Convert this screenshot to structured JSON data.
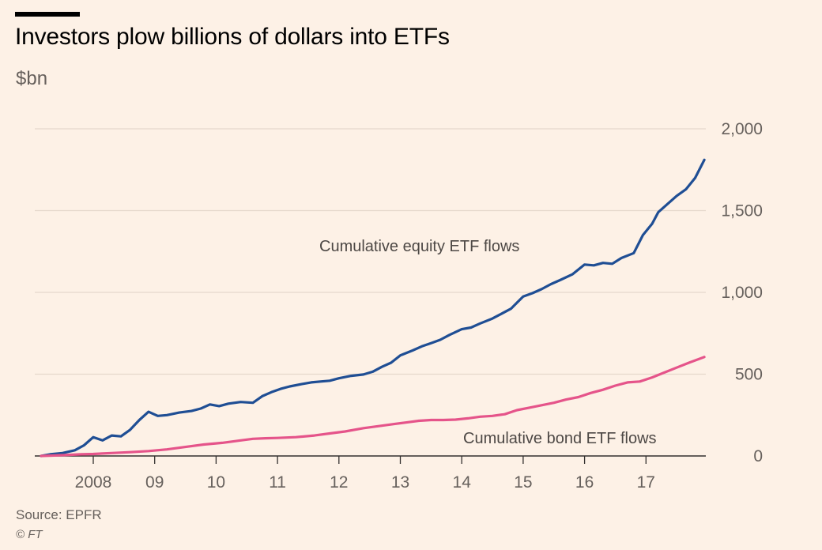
{
  "header": {
    "title": "Investors plow billions of dollars into ETFs",
    "subtitle": "$bn"
  },
  "footer": {
    "source": "Source: EPFR",
    "copyright": "© FT"
  },
  "colors": {
    "equity": "#1f4e94",
    "bond": "#e5548a",
    "grid": "#e5d8cc",
    "axis": "#33302e"
  },
  "chart_data": {
    "type": "line",
    "title": "Investors plow billions of dollars into ETFs",
    "ylabel": "$bn",
    "xlabel": "",
    "ylim": [
      0,
      2000
    ],
    "xlim": [
      2007.15,
      2017.95
    ],
    "y_ticks": [
      {
        "value": 0,
        "label": "0"
      },
      {
        "value": 500,
        "label": "500"
      },
      {
        "value": 1000,
        "label": "1,000"
      },
      {
        "value": 1500,
        "label": "1,500"
      },
      {
        "value": 2000,
        "label": "2,000"
      }
    ],
    "x_ticks": [
      {
        "value": 2008,
        "label": "2008"
      },
      {
        "value": 2009,
        "label": "09"
      },
      {
        "value": 2010,
        "label": "10"
      },
      {
        "value": 2011,
        "label": "11"
      },
      {
        "value": 2012,
        "label": "12"
      },
      {
        "value": 2013,
        "label": "13"
      },
      {
        "value": 2014,
        "label": "14"
      },
      {
        "value": 2015,
        "label": "15"
      },
      {
        "value": 2016,
        "label": "16"
      },
      {
        "value": 2017,
        "label": "17"
      }
    ],
    "annotations": {
      "equity": "Cumulative equity ETF flows",
      "bond": "Cumulative bond ETF flows"
    },
    "series": [
      {
        "name": "Cumulative equity ETF flows",
        "points": [
          [
            2007.15,
            0
          ],
          [
            2007.3,
            10
          ],
          [
            2007.5,
            18
          ],
          [
            2007.7,
            35
          ],
          [
            2007.85,
            65
          ],
          [
            2008.0,
            115
          ],
          [
            2008.15,
            95
          ],
          [
            2008.3,
            125
          ],
          [
            2008.45,
            120
          ],
          [
            2008.6,
            160
          ],
          [
            2008.75,
            220
          ],
          [
            2008.9,
            270
          ],
          [
            2009.05,
            245
          ],
          [
            2009.2,
            250
          ],
          [
            2009.4,
            265
          ],
          [
            2009.6,
            275
          ],
          [
            2009.75,
            290
          ],
          [
            2009.9,
            315
          ],
          [
            2010.05,
            305
          ],
          [
            2010.2,
            320
          ],
          [
            2010.4,
            330
          ],
          [
            2010.6,
            325
          ],
          [
            2010.75,
            365
          ],
          [
            2010.9,
            390
          ],
          [
            2011.05,
            410
          ],
          [
            2011.2,
            425
          ],
          [
            2011.4,
            440
          ],
          [
            2011.55,
            450
          ],
          [
            2011.7,
            455
          ],
          [
            2011.85,
            460
          ],
          [
            2012.0,
            475
          ],
          [
            2012.2,
            490
          ],
          [
            2012.4,
            498
          ],
          [
            2012.55,
            515
          ],
          [
            2012.7,
            545
          ],
          [
            2012.85,
            570
          ],
          [
            2013.0,
            615
          ],
          [
            2013.2,
            645
          ],
          [
            2013.35,
            670
          ],
          [
            2013.5,
            690
          ],
          [
            2013.65,
            710
          ],
          [
            2013.8,
            740
          ],
          [
            2014.0,
            775
          ],
          [
            2014.15,
            785
          ],
          [
            2014.3,
            810
          ],
          [
            2014.5,
            840
          ],
          [
            2014.65,
            870
          ],
          [
            2014.8,
            900
          ],
          [
            2015.0,
            975
          ],
          [
            2015.15,
            995
          ],
          [
            2015.3,
            1020
          ],
          [
            2015.45,
            1050
          ],
          [
            2015.6,
            1075
          ],
          [
            2015.8,
            1110
          ],
          [
            2016.0,
            1170
          ],
          [
            2016.15,
            1165
          ],
          [
            2016.3,
            1180
          ],
          [
            2016.45,
            1175
          ],
          [
            2016.6,
            1210
          ],
          [
            2016.8,
            1240
          ],
          [
            2016.95,
            1350
          ],
          [
            2017.1,
            1420
          ],
          [
            2017.2,
            1490
          ],
          [
            2017.35,
            1540
          ],
          [
            2017.5,
            1590
          ],
          [
            2017.65,
            1630
          ],
          [
            2017.8,
            1700
          ],
          [
            2017.95,
            1810
          ]
        ]
      },
      {
        "name": "Cumulative bond ETF flows",
        "points": [
          [
            2007.15,
            0
          ],
          [
            2007.5,
            5
          ],
          [
            2007.8,
            10
          ],
          [
            2008.0,
            12
          ],
          [
            2008.3,
            18
          ],
          [
            2008.6,
            23
          ],
          [
            2008.9,
            30
          ],
          [
            2009.2,
            40
          ],
          [
            2009.5,
            55
          ],
          [
            2009.8,
            70
          ],
          [
            2010.1,
            80
          ],
          [
            2010.4,
            95
          ],
          [
            2010.6,
            105
          ],
          [
            2010.8,
            108
          ],
          [
            2011.0,
            110
          ],
          [
            2011.3,
            115
          ],
          [
            2011.6,
            125
          ],
          [
            2011.9,
            140
          ],
          [
            2012.1,
            150
          ],
          [
            2012.4,
            170
          ],
          [
            2012.7,
            185
          ],
          [
            2012.9,
            195
          ],
          [
            2013.1,
            205
          ],
          [
            2013.3,
            215
          ],
          [
            2013.5,
            220
          ],
          [
            2013.7,
            220
          ],
          [
            2013.9,
            222
          ],
          [
            2014.1,
            230
          ],
          [
            2014.3,
            240
          ],
          [
            2014.5,
            245
          ],
          [
            2014.7,
            255
          ],
          [
            2014.9,
            280
          ],
          [
            2015.1,
            295
          ],
          [
            2015.3,
            310
          ],
          [
            2015.5,
            325
          ],
          [
            2015.7,
            345
          ],
          [
            2015.9,
            360
          ],
          [
            2016.1,
            385
          ],
          [
            2016.3,
            405
          ],
          [
            2016.5,
            430
          ],
          [
            2016.7,
            450
          ],
          [
            2016.9,
            455
          ],
          [
            2017.1,
            480
          ],
          [
            2017.3,
            510
          ],
          [
            2017.5,
            540
          ],
          [
            2017.7,
            570
          ],
          [
            2017.95,
            605
          ]
        ]
      }
    ]
  }
}
